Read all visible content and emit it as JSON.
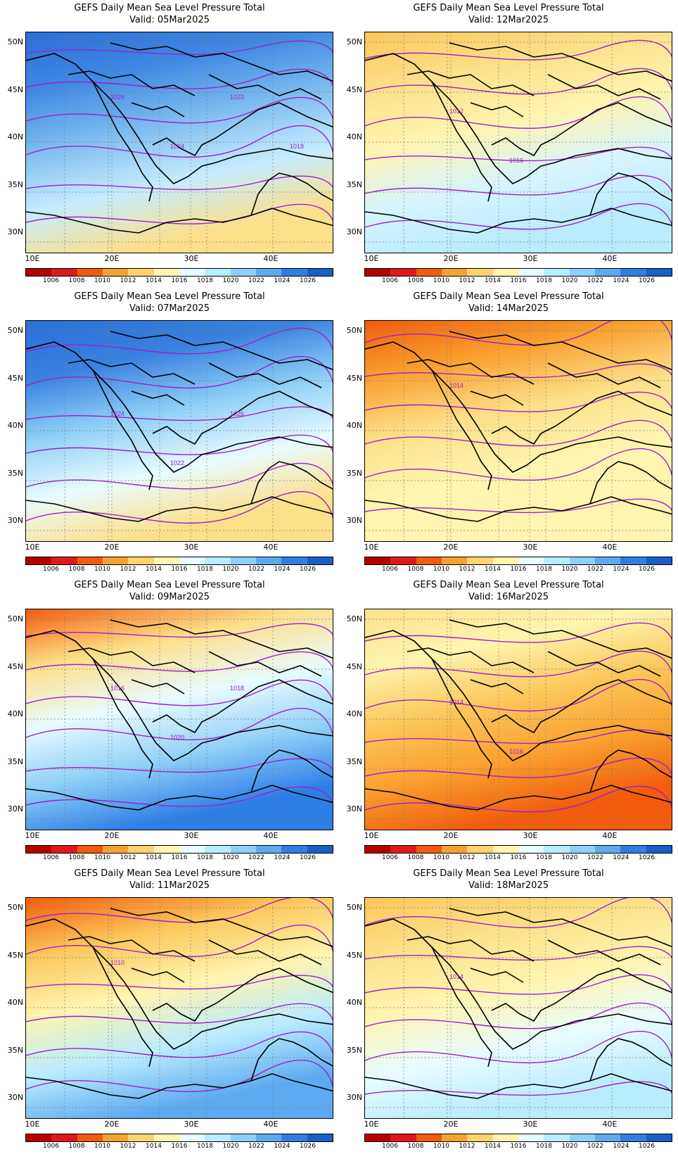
{
  "colorbar": {
    "labels": [
      "1006",
      "1008",
      "1010",
      "1012",
      "1014",
      "1016",
      "1018",
      "1020",
      "1022",
      "1024",
      "1026"
    ],
    "colors": [
      "#b50000",
      "#e0181e",
      "#f25c0c",
      "#f9a12f",
      "#fdd46c",
      "#fff4b0",
      "#e8fbff",
      "#b9ecff",
      "#8fd0f8",
      "#5eaaf0",
      "#2f7ee6",
      "#1a5ecc"
    ]
  },
  "axes": {
    "lat_labels": [
      "50N",
      "45N",
      "40N",
      "35N",
      "30N"
    ],
    "lon_labels": [
      "10E",
      "20E",
      "30E",
      "40E"
    ]
  },
  "panels": [
    {
      "title": "GEFS Daily Mean Sea Level Pressure Total",
      "valid": "Valid: 05Mar2025",
      "base": "#3a82df",
      "grad": [
        "#2a6ed8",
        "#3f89e2",
        "#7dbcf0",
        "#c6ecff",
        "#fde08a"
      ],
      "contour_labels": [
        "1026",
        "1024",
        "1022",
        "1018"
      ]
    },
    {
      "title": "GEFS Daily Mean Sea Level Pressure Total",
      "valid": "Valid: 12Mar2025",
      "base": "#fde08a",
      "grad": [
        "#fcc75a",
        "#fde08a",
        "#fff4b0",
        "#d6f4ff",
        "#b9ecff"
      ],
      "contour_labels": [
        "1012",
        "1016"
      ]
    },
    {
      "title": "GEFS Daily Mean Sea Level Pressure Total",
      "valid": "Valid: 07Mar2025",
      "base": "#3a82df",
      "grad": [
        "#2a6ed8",
        "#3a82df",
        "#8fd0f8",
        "#e8fbff",
        "#fde08a"
      ],
      "contour_labels": [
        "1024",
        "1022",
        "1026"
      ]
    },
    {
      "title": "GEFS Daily Mean Sea Level Pressure Total",
      "valid": "Valid: 14Mar2025",
      "base": "#fde08a",
      "grad": [
        "#f25c0c",
        "#f9a12f",
        "#fde08a",
        "#fff4b0",
        "#fff4b0"
      ],
      "contour_labels": [
        "1014"
      ]
    },
    {
      "title": "GEFS Daily Mean Sea Level Pressure Total",
      "valid": "Valid: 09Mar2025",
      "base": "#fff4b0",
      "grad": [
        "#f25c0c",
        "#fde08a",
        "#e8fbff",
        "#8fd0f8",
        "#2f7ee6"
      ],
      "contour_labels": [
        "1016",
        "1020",
        "1018"
      ]
    },
    {
      "title": "GEFS Daily Mean Sea Level Pressure Total",
      "valid": "Valid: 16Mar2025",
      "base": "#fde08a",
      "grad": [
        "#fde08a",
        "#fff4b0",
        "#fcc75a",
        "#f9a12f",
        "#f25c0c"
      ],
      "contour_labels": [
        "1014",
        "1016"
      ]
    },
    {
      "title": "GEFS Daily Mean Sea Level Pressure Total",
      "valid": "Valid: 11Mar2025",
      "base": "#b9ecff",
      "grad": [
        "#f25c0c",
        "#fcc75a",
        "#fff4b0",
        "#b9ecff",
        "#5eaaf0"
      ],
      "contour_labels": [
        "1010"
      ]
    },
    {
      "title": "GEFS Daily Mean Sea Level Pressure Total",
      "valid": "Valid: 18Mar2025",
      "base": "#fff4b0",
      "grad": [
        "#fcc75a",
        "#fde08a",
        "#fff4b0",
        "#e8fbff",
        "#b9ecff"
      ],
      "contour_labels": [
        "1014"
      ]
    }
  ]
}
